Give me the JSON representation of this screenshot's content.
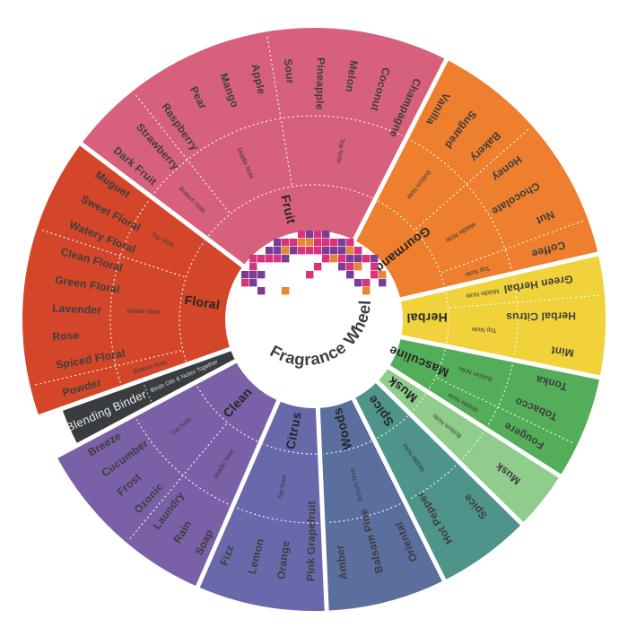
{
  "title": "Fragrance Wheel",
  "center": {
    "label": "Fragrance Wheel",
    "text_color": "#3f3f3f",
    "mosaic_colors": [
      "#D8337B",
      "#7A3D95",
      "#E8872F"
    ]
  },
  "wheel": {
    "background": "#ffffff",
    "item_text_color": "#3d3d3d",
    "family_text_color": "#262626",
    "note_text_color": "#3a3a3a",
    "families": [
      {
        "name": "Fruit",
        "color": "#D7617C",
        "start": 307,
        "end": 387,
        "items": [
          "Dark Fruit",
          "Strawberry",
          "Raspberry",
          "Pear",
          "Mango",
          "Apple",
          "Sour",
          "Pineapple",
          "Melon",
          "Coconut",
          "Champagne"
        ],
        "notes": [
          {
            "label": "Bottom Note",
            "count": 2
          },
          {
            "label": "Middle Note",
            "count": 4
          },
          {
            "label": "Top Note",
            "count": 5
          }
        ]
      },
      {
        "name": "Gourmand",
        "color": "#ED7F2E",
        "start": 27,
        "end": 77,
        "items": [
          "Vanilla",
          "Sugared",
          "Bakery",
          "Honey",
          "Chocolate",
          "Nut",
          "Coffee"
        ],
        "notes": [
          {
            "label": "Bottom Note",
            "count": 3
          },
          {
            "label": "Middle Note",
            "count": 3
          },
          {
            "label": "Top Note",
            "count": 1
          }
        ]
      },
      {
        "name": "Herbal",
        "color": "#F1D23B",
        "start": 77,
        "end": 101.5,
        "items": [
          "Green Herbal",
          "Herbal Citrus",
          "Mint"
        ],
        "notes": [
          {
            "label": "Middle Note",
            "count": 1
          },
          {
            "label": "Top Note",
            "count": 2
          }
        ]
      },
      {
        "name": "Masculine",
        "color": "#54AE59",
        "start": 101.5,
        "end": 122.5,
        "items": [
          "Tonka",
          "Tobacco",
          "Fougere"
        ],
        "notes": [
          {
            "label": "Bottom Note",
            "count": 2
          },
          {
            "label": "Middle Note",
            "count": 1
          }
        ]
      },
      {
        "name": "Musk",
        "color": "#90CC8C",
        "start": 122.5,
        "end": 134.5,
        "items": [
          "Musk"
        ],
        "notes": [
          {
            "label": "Bottom Note",
            "count": 1
          }
        ]
      },
      {
        "name": "Spice",
        "color": "#4E948A",
        "start": 134.5,
        "end": 153.5,
        "items": [
          "Spice",
          "Hot Pepper"
        ],
        "notes": [
          {
            "label": "Middle Note",
            "count": 2
          }
        ]
      },
      {
        "name": "Woods",
        "color": "#5B6F9F",
        "start": 153.5,
        "end": 177.5,
        "items": [
          "Oriental",
          "Balsam Pine",
          "Amber"
        ],
        "notes": [
          {
            "label": "Bottom Note",
            "count": 3
          }
        ]
      },
      {
        "name": "Citrus",
        "color": "#6968AB",
        "start": 177.5,
        "end": 203.5,
        "items": [
          "Pink Grapefruit",
          "Orange",
          "Lemon",
          "Fizz"
        ],
        "notes": [
          {
            "label": "Top Note",
            "count": 4
          }
        ]
      },
      {
        "name": "Clean",
        "color": "#7A61A7",
        "start": 203.5,
        "end": 242,
        "items": [
          "Soap",
          "Rain",
          "Laundry",
          "Ozonic",
          "Frost",
          "Cucumber",
          "Breeze"
        ],
        "notes": [
          {
            "label": "Middle Note",
            "count": 3
          },
          {
            "label": "Top Note",
            "count": 4
          }
        ]
      },
      {
        "name": "Floral",
        "color": "#D3462A",
        "start": 250.5,
        "end": 307,
        "items": [
          "Powder",
          "Spiced Floral",
          "Rose",
          "Lavender",
          "Green Floral",
          "Clean Floral",
          "Watery Floral",
          "Sweet Floral",
          "Muguet"
        ],
        "notes": [
          {
            "label": "Bottom Note",
            "count": 1
          },
          {
            "label": "Middle Note",
            "count": 5
          },
          {
            "label": "Top Note",
            "count": 3
          }
        ]
      }
    ],
    "binder": {
      "label": "Blending Binder",
      "sublabel": "Binds Oils & Notes Together",
      "color": "#3A3D40",
      "text_color": "#ECECEC",
      "subtext_color": "#D8D8D8",
      "start": 242,
      "end": 250.5
    }
  }
}
